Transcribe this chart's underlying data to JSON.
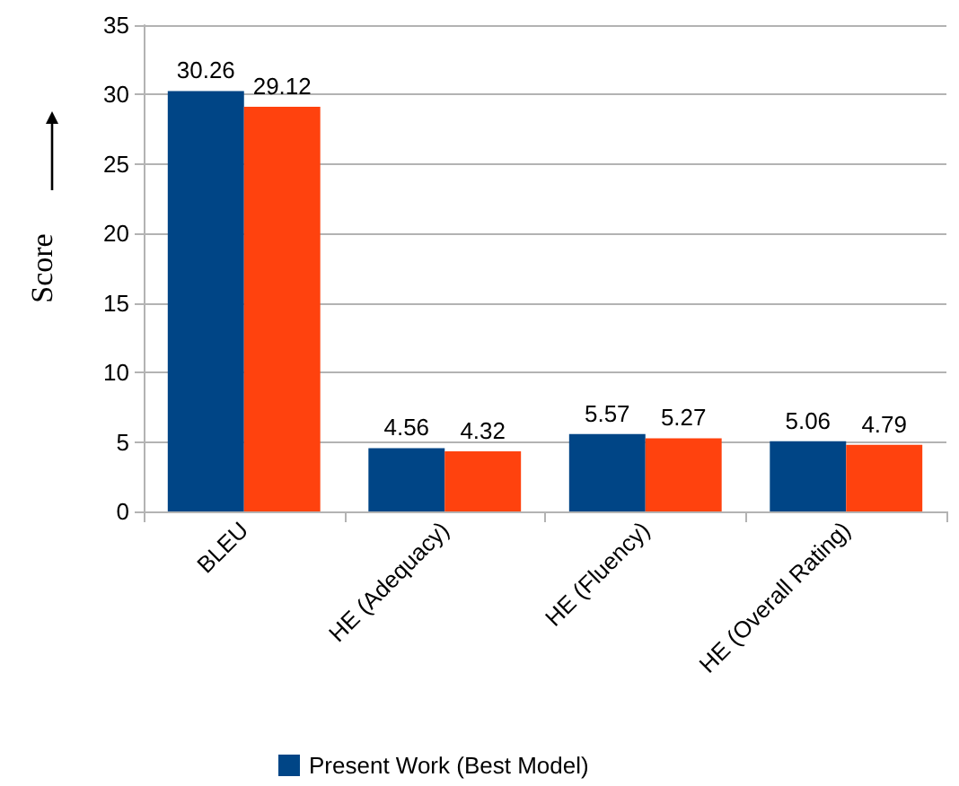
{
  "chart_data": {
    "type": "bar",
    "ylabel": "Score",
    "categories": [
      "BLEU",
      "HE (Adequacy)",
      "HE (Fluency)",
      "HE (Overall Rating)"
    ],
    "series": [
      {
        "name": "Present Work (Best Model)",
        "color": "#004586",
        "values": [
          30.26,
          4.56,
          5.57,
          5.06
        ]
      },
      {
        "color": "#ff420e",
        "values": [
          29.12,
          4.32,
          5.27,
          4.79
        ]
      }
    ],
    "ylim": [
      0,
      35
    ],
    "yticks": [
      0,
      5,
      10,
      15,
      20,
      25,
      30,
      35
    ],
    "grid": "y",
    "legend": "bottom",
    "data_labels": true
  }
}
